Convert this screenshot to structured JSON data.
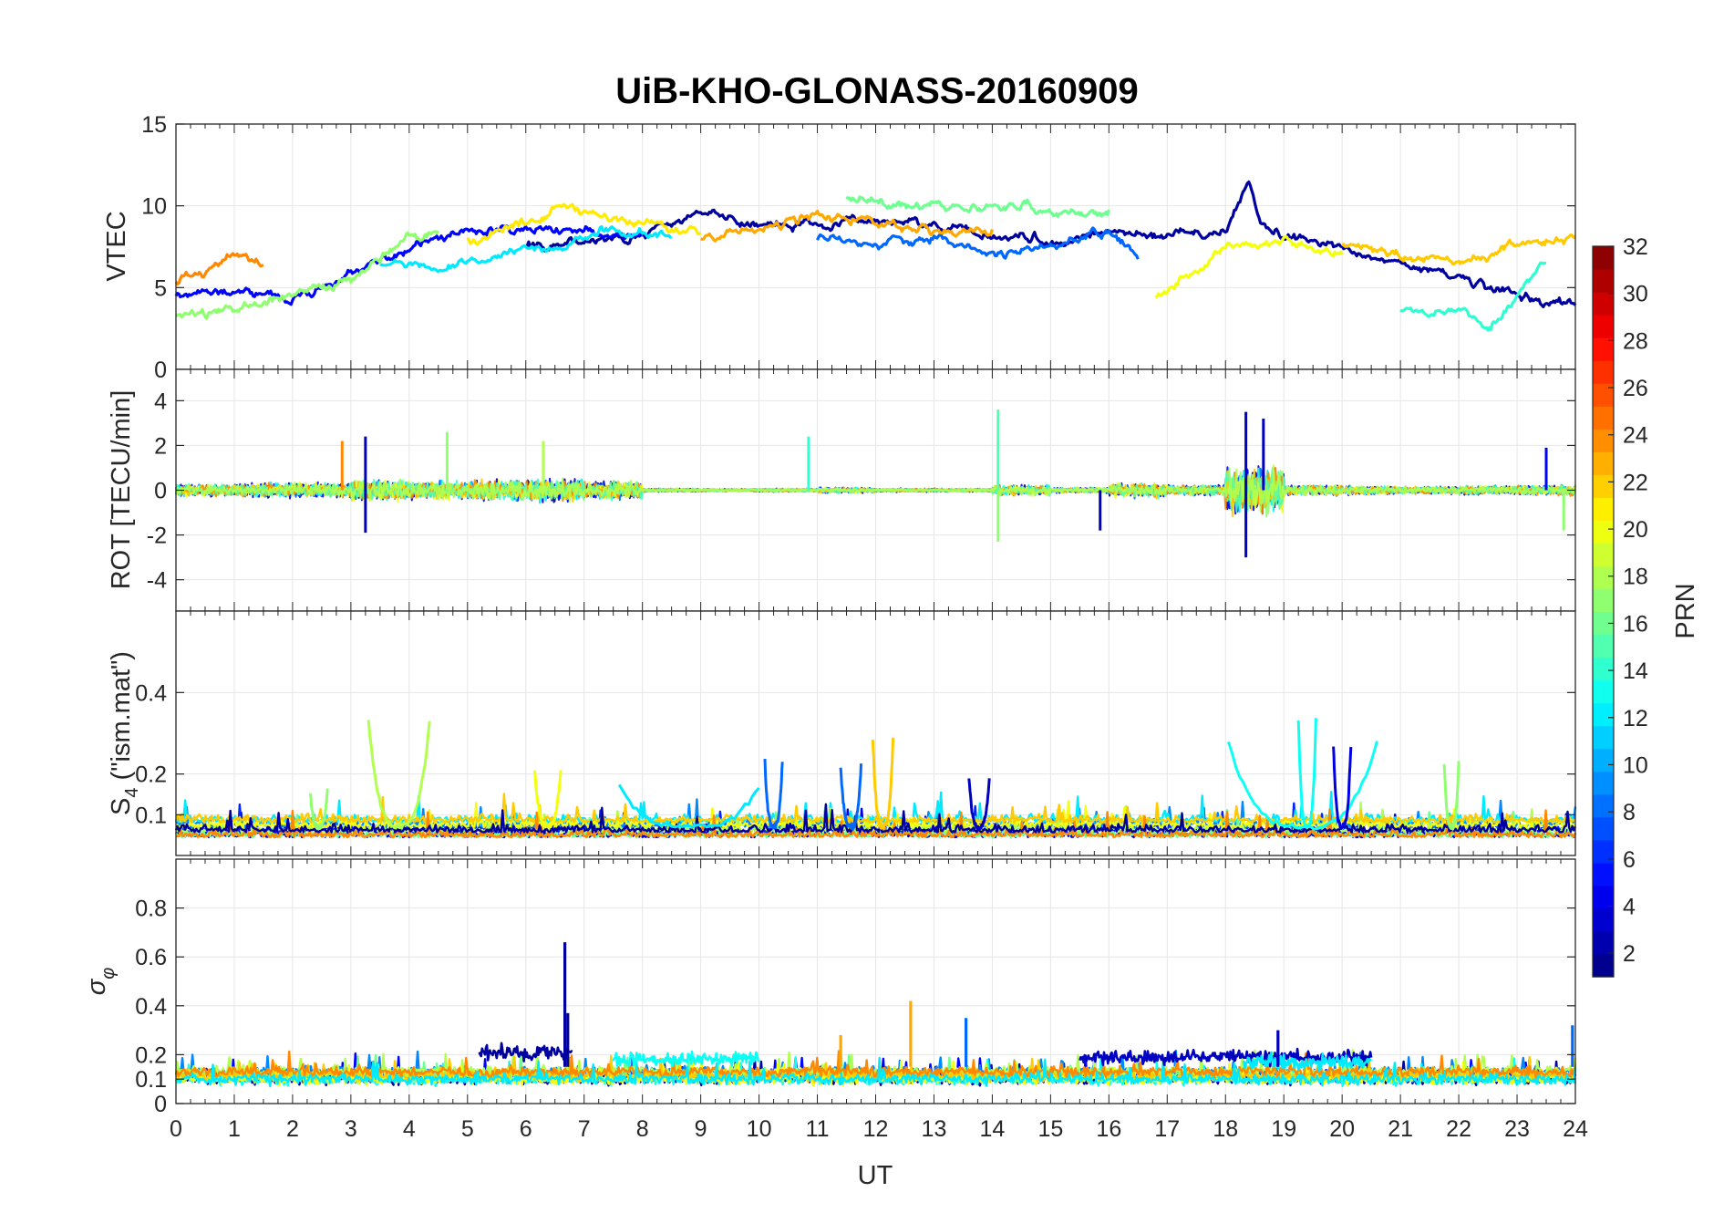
{
  "chart_data": [
    {
      "type": "line",
      "panel": "vtec",
      "title": "UiB-KHO-GLONASS-20160909",
      "ylabel": "VTEC",
      "xlabel": "",
      "xlim": [
        0,
        24
      ],
      "ylim": [
        0,
        15
      ],
      "yticks": [
        0,
        5,
        10,
        15
      ],
      "ytick_labels": [
        "0",
        "5",
        "10",
        "15"
      ],
      "grid": true,
      "series": [
        {
          "name": "PRN 2",
          "prn": 2,
          "x": [
            6.0,
            7.0,
            8.0,
            9.0,
            10.0,
            11.0,
            12.0,
            13.0,
            14.0,
            15.0,
            16.0,
            17.0,
            18.0,
            18.4,
            18.6,
            19.0,
            20.0,
            21.0,
            22.0,
            23.0,
            24.0
          ],
          "y": [
            7.5,
            7.8,
            8.2,
            9.5,
            9.0,
            8.8,
            9.2,
            8.6,
            8.2,
            7.8,
            8.5,
            8.2,
            8.5,
            11.5,
            9.0,
            8.0,
            7.5,
            6.5,
            5.5,
            4.5,
            4.0
          ]
        },
        {
          "name": "PRN 5",
          "prn": 5,
          "x": [
            0.0,
            1.0,
            2.0,
            3.0,
            4.0,
            5.0,
            6.0,
            7.0,
            8.0
          ],
          "y": [
            4.5,
            4.7,
            4.2,
            5.8,
            7.5,
            8.5,
            8.6,
            8.6,
            8.0
          ]
        },
        {
          "name": "PRN 8",
          "prn": 8,
          "x": [
            11.0,
            12.0,
            13.0,
            14.0,
            15.0,
            16.0,
            16.5
          ],
          "y": [
            8.0,
            7.8,
            8.0,
            7.0,
            7.5,
            8.5,
            7.0
          ]
        },
        {
          "name": "PRN 12",
          "prn": 12,
          "x": [
            3.5,
            4.5,
            5.5,
            6.5,
            7.5,
            8.5
          ],
          "y": [
            6.5,
            6.0,
            7.0,
            7.5,
            8.5,
            8.0
          ]
        },
        {
          "name": "PRN 14",
          "prn": 14,
          "x": [
            21.0,
            22.0,
            22.5,
            23.0,
            23.5
          ],
          "y": [
            3.5,
            3.5,
            2.5,
            4.5,
            6.5
          ]
        },
        {
          "name": "PRN 16",
          "prn": 16,
          "x": [
            11.5,
            12.5,
            13.5,
            14.5,
            15.5,
            16.0
          ],
          "y": [
            10.5,
            10.0,
            9.8,
            10.0,
            9.5,
            9.8
          ]
        },
        {
          "name": "PRN 17",
          "prn": 17,
          "x": [
            0.0,
            1.0,
            2.0,
            3.0,
            4.0,
            4.5
          ],
          "y": [
            3.2,
            3.8,
            4.5,
            5.5,
            8.2,
            8.5
          ]
        },
        {
          "name": "PRN 20",
          "prn": 20,
          "x": [
            16.8,
            17.5,
            18.0,
            19.0,
            20.0
          ],
          "y": [
            4.5,
            6.0,
            7.5,
            7.8,
            7.0
          ]
        },
        {
          "name": "PRN 21",
          "prn": 21,
          "x": [
            5.0,
            6.0,
            6.6,
            7.0,
            8.0,
            9.0
          ],
          "y": [
            8.0,
            9.0,
            10.0,
            9.5,
            9.0,
            8.5
          ]
        },
        {
          "name": "PRN 23",
          "prn": 23,
          "x": [
            9.0,
            10.0,
            11.0,
            12.0,
            13.0,
            14.0
          ],
          "y": [
            8.0,
            8.5,
            9.5,
            9.0,
            8.5,
            8.4
          ]
        },
        {
          "name": "PRN 24",
          "prn": 24,
          "x": [
            0.0,
            0.5,
            1.0,
            1.5
          ],
          "y": [
            5.5,
            6.0,
            7.2,
            6.5
          ]
        },
        {
          "name": "PRN 22",
          "prn": 22,
          "x": [
            20.0,
            21.0,
            22.0,
            23.0,
            24.0
          ],
          "y": [
            7.5,
            7.0,
            6.5,
            7.5,
            8.0
          ]
        }
      ]
    },
    {
      "type": "line",
      "panel": "rot",
      "ylabel": "ROT [TECU/min]",
      "xlabel": "",
      "xlim": [
        0,
        24
      ],
      "ylim": [
        -5.4,
        5.4
      ],
      "yticks": [
        -4,
        -2,
        0,
        2,
        4
      ],
      "ytick_labels": [
        "-4",
        "-2",
        "0",
        "2",
        "4"
      ],
      "grid": true,
      "activity": [
        0.7,
        0.8,
        0.8,
        1.2,
        1.0,
        1.2,
        1.3,
        1.0,
        0.2,
        0.15,
        0.2,
        0.3,
        0.2,
        0.2,
        0.6,
        0.3,
        0.8,
        0.6,
        2.8,
        0.6,
        0.5,
        0.4,
        0.5,
        0.6
      ],
      "spikes": [
        {
          "t": 3.25,
          "v": 2.4,
          "prn": 3
        },
        {
          "t": 3.25,
          "v": -1.9,
          "prn": 3
        },
        {
          "t": 2.85,
          "v": 2.2,
          "prn": 24
        },
        {
          "t": 4.65,
          "v": 2.6,
          "prn": 17
        },
        {
          "t": 6.3,
          "v": 2.2,
          "prn": 18
        },
        {
          "t": 10.85,
          "v": 2.4,
          "prn": 14
        },
        {
          "t": 14.1,
          "v": 3.6,
          "prn": 15
        },
        {
          "t": 14.1,
          "v": -2.3,
          "prn": 17
        },
        {
          "t": 15.85,
          "v": -1.8,
          "prn": 3
        },
        {
          "t": 18.35,
          "v": 3.5,
          "prn": 3
        },
        {
          "t": 18.35,
          "v": -3.0,
          "prn": 3
        },
        {
          "t": 18.65,
          "v": 3.2,
          "prn": 3
        },
        {
          "t": 23.5,
          "v": 1.9,
          "prn": 5
        },
        {
          "t": 23.8,
          "v": -1.8,
          "prn": 17
        }
      ]
    },
    {
      "type": "line",
      "panel": "s4",
      "ylabel": "S4 (\"ism.mat\")",
      "xlabel": "",
      "xlim": [
        0,
        24
      ],
      "ylim": [
        0,
        0.6
      ],
      "yticks": [
        0.1,
        0.2,
        0.4
      ],
      "ytick_labels": [
        "0.1",
        "0.2",
        "0.4"
      ],
      "grid": true,
      "bursts": [
        {
          "t0": 3.3,
          "t1": 4.35,
          "prn": 18,
          "peak": 0.33
        },
        {
          "t0": 6.15,
          "t1": 6.6,
          "prn": 20,
          "peak": 0.21
        },
        {
          "t0": 7.6,
          "t1": 10.0,
          "prn": 12,
          "peak": 0.17
        },
        {
          "t0": 10.1,
          "t1": 10.4,
          "prn": 8,
          "peak": 0.23
        },
        {
          "t0": 11.4,
          "t1": 11.75,
          "prn": 8,
          "peak": 0.22
        },
        {
          "t0": 11.95,
          "t1": 12.3,
          "prn": 22,
          "peak": 0.29
        },
        {
          "t0": 13.6,
          "t1": 13.95,
          "prn": 3,
          "peak": 0.19
        },
        {
          "t0": 18.05,
          "t1": 20.6,
          "prn": 13,
          "peak": 0.28
        },
        {
          "t0": 19.25,
          "t1": 19.55,
          "prn": 13,
          "peak": 0.33
        },
        {
          "t0": 19.85,
          "t1": 20.15,
          "prn": 4,
          "peak": 0.27
        },
        {
          "t0": 21.75,
          "t1": 22.0,
          "prn": 17,
          "peak": 0.23
        },
        {
          "t0": 2.3,
          "t1": 2.6,
          "prn": 17,
          "peak": 0.16
        }
      ]
    },
    {
      "type": "line",
      "panel": "sigma-phi",
      "ylabel": "σφ",
      "xlabel": "UT",
      "xlim": [
        0,
        24
      ],
      "ylim": [
        0,
        1
      ],
      "yticks": [
        0,
        0.1,
        0.2,
        0.4,
        0.6,
        0.8
      ],
      "ytick_labels": [
        "0",
        "0.1",
        "0.2",
        "0.4",
        "0.6",
        "0.8"
      ],
      "grid": true,
      "xticks": [
        0,
        1,
        2,
        3,
        4,
        5,
        6,
        7,
        8,
        9,
        10,
        11,
        12,
        13,
        14,
        15,
        16,
        17,
        18,
        19,
        20,
        21,
        22,
        23,
        24
      ],
      "xtick_labels": [
        "0",
        "1",
        "2",
        "3",
        "4",
        "5",
        "6",
        "7",
        "8",
        "9",
        "10",
        "11",
        "12",
        "13",
        "14",
        "15",
        "16",
        "17",
        "18",
        "19",
        "20",
        "21",
        "22",
        "23",
        "24"
      ],
      "spikes": [
        {
          "t": 6.67,
          "v": 0.66,
          "prn": 2
        },
        {
          "t": 6.72,
          "v": 0.37,
          "prn": 2
        },
        {
          "t": 12.6,
          "v": 0.42,
          "prn": 23
        },
        {
          "t": 13.55,
          "v": 0.35,
          "prn": 8
        },
        {
          "t": 18.9,
          "v": 0.3,
          "prn": 3
        },
        {
          "t": 23.95,
          "v": 0.32,
          "prn": 8
        },
        {
          "t": 11.4,
          "v": 0.28,
          "prn": 23
        }
      ],
      "level_segments": [
        {
          "t0": 5.2,
          "t1": 6.8,
          "prn": 2,
          "level": 0.21
        },
        {
          "t0": 15.5,
          "t1": 20.5,
          "prn": 3,
          "level": 0.19
        },
        {
          "t0": 7.5,
          "t1": 10.0,
          "prn": 13,
          "level": 0.18
        },
        {
          "t0": 18.3,
          "t1": 20.5,
          "prn": 12,
          "level": 0.17
        }
      ]
    }
  ],
  "colorbar": {
    "label": "PRN",
    "range": [
      1,
      32
    ],
    "ticks": [
      2,
      4,
      6,
      8,
      10,
      12,
      14,
      16,
      18,
      20,
      22,
      24,
      26,
      28,
      30,
      32
    ],
    "tick_labels": [
      "2",
      "4",
      "6",
      "8",
      "10",
      "12",
      "14",
      "16",
      "18",
      "20",
      "22",
      "24",
      "26",
      "28",
      "30",
      "32"
    ],
    "colormap": "jet"
  }
}
